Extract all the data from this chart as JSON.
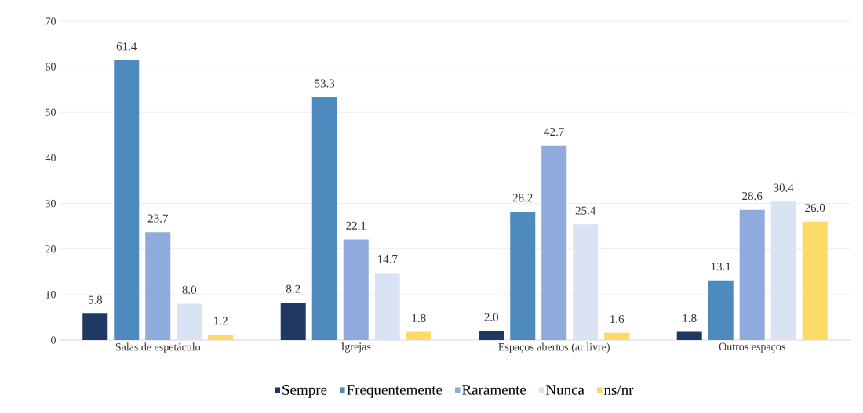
{
  "chart_data": {
    "type": "bar",
    "categories": [
      "Salas de espetáculo",
      "Igrejas",
      "Espaços abertos (ar livre)",
      "Outros espaços"
    ],
    "series": [
      {
        "name": "Sempre",
        "color": "#1f3864",
        "values": [
          5.8,
          8.2,
          2.0,
          1.8
        ],
        "value_labels": [
          "5.8",
          "8.2",
          "2.0",
          "1.8"
        ]
      },
      {
        "name": "Frequentemente",
        "color": "#4e8abe",
        "values": [
          61.4,
          53.3,
          28.2,
          13.1
        ],
        "value_labels": [
          "61.4",
          "53.3",
          "28.2",
          "13.1"
        ]
      },
      {
        "name": "Raramente",
        "color": "#8faadc",
        "values": [
          23.7,
          22.1,
          42.7,
          28.6
        ],
        "value_labels": [
          "23.7",
          "22.1",
          "42.7",
          "28.6"
        ]
      },
      {
        "name": "Nunca",
        "color": "#dae3f3",
        "values": [
          8.0,
          14.7,
          25.4,
          30.4
        ],
        "value_labels": [
          "8.0",
          "14.7",
          "25.4",
          "30.4"
        ]
      },
      {
        "name": "ns/nr",
        "color": "#ffd966",
        "values": [
          1.2,
          1.8,
          1.6,
          26.0
        ],
        "value_labels": [
          "1.2",
          "1.8",
          "1.6",
          "26.0"
        ]
      }
    ],
    "ylim": [
      0,
      70
    ],
    "yticks": [
      0,
      10,
      20,
      30,
      40,
      50,
      60,
      70
    ],
    "grid": "y",
    "legend": "bottom"
  }
}
